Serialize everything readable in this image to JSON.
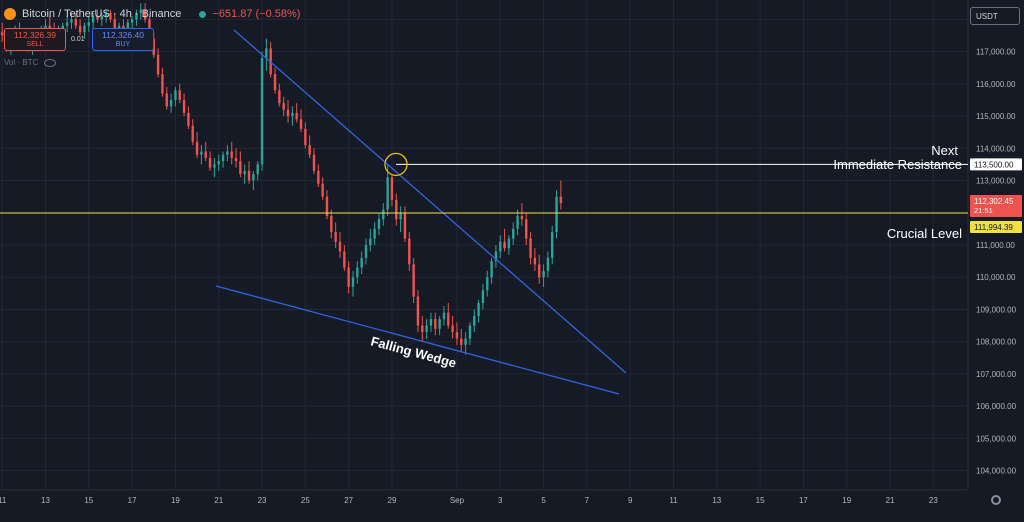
{
  "header": {
    "title": "Bitcoin / TetherUS · 4h · Binance",
    "change": "−651.87 (−0.58%)"
  },
  "trade": {
    "sell_price": "112,326.39",
    "sell_label": "SELL",
    "spread": "0.01",
    "buy_price": "112,326.40",
    "buy_label": "BUY"
  },
  "volume_label": "Vol · BTC",
  "currency": "USDT",
  "chart_data": {
    "type": "candlestick",
    "ylim": [
      103400,
      118600
    ],
    "yticks": [
      104000,
      105000,
      106000,
      107000,
      108000,
      109000,
      110000,
      111000,
      112000,
      113000,
      114000,
      115000,
      116000,
      117000,
      118000
    ],
    "ytick_labels": [
      "104,000.00",
      "105,000.00",
      "106,000.00",
      "107,000.00",
      "108,000.00",
      "109,000.00",
      "110,000.00",
      "111,000.00",
      "112,000.00",
      "113,000.00",
      "114,000.00",
      "115,000.00",
      "116,000.00",
      "117,000.00",
      "118,000.00"
    ],
    "xticks": [
      {
        "label": "11",
        "t": 0
      },
      {
        "label": "13",
        "t": 2
      },
      {
        "label": "15",
        "t": 4
      },
      {
        "label": "17",
        "t": 6
      },
      {
        "label": "19",
        "t": 8
      },
      {
        "label": "21",
        "t": 10
      },
      {
        "label": "23",
        "t": 12
      },
      {
        "label": "25",
        "t": 14
      },
      {
        "label": "27",
        "t": 16
      },
      {
        "label": "29",
        "t": 18
      },
      {
        "label": "Sep",
        "t": 21
      },
      {
        "label": "3",
        "t": 23
      },
      {
        "label": "5",
        "t": 25
      },
      {
        "label": "7",
        "t": 27
      },
      {
        "label": "9",
        "t": 29
      },
      {
        "label": "11",
        "t": 31
      },
      {
        "label": "13",
        "t": 33
      },
      {
        "label": "15",
        "t": 35
      },
      {
        "label": "17",
        "t": 37
      },
      {
        "label": "19",
        "t": 39
      },
      {
        "label": "21",
        "t": 41
      },
      {
        "label": "23",
        "t": 43
      }
    ],
    "xlim": [
      -0.1,
      44.6
    ],
    "candles": [
      [
        0.0,
        117600,
        117900,
        117300,
        117500
      ],
      [
        0.2,
        117500,
        117700,
        117000,
        117200
      ],
      [
        0.4,
        117200,
        117500,
        116900,
        117300
      ],
      [
        0.6,
        117300,
        117800,
        117100,
        117600
      ],
      [
        0.8,
        117600,
        117900,
        117400,
        117500
      ],
      [
        1.0,
        117500,
        117700,
        117200,
        117400
      ],
      [
        1.2,
        117400,
        117600,
        117000,
        117100
      ],
      [
        1.4,
        117100,
        117400,
        116900,
        117300
      ],
      [
        1.6,
        117300,
        117600,
        117100,
        117500
      ],
      [
        1.8,
        117500,
        117800,
        117300,
        117700
      ],
      [
        2.0,
        117700,
        118000,
        117500,
        117800
      ],
      [
        2.2,
        117800,
        118100,
        117600,
        117700
      ],
      [
        2.4,
        117700,
        117900,
        117400,
        117500
      ],
      [
        2.6,
        117500,
        117800,
        117300,
        117600
      ],
      [
        2.8,
        117600,
        117900,
        117400,
        117800
      ],
      [
        3.0,
        117800,
        118100,
        117600,
        117900
      ],
      [
        3.2,
        117900,
        118200,
        117700,
        118000
      ],
      [
        3.4,
        118000,
        118200,
        117700,
        117800
      ],
      [
        3.6,
        117800,
        118000,
        117500,
        117600
      ],
      [
        3.8,
        117600,
        117900,
        117400,
        117800
      ],
      [
        4.0,
        117800,
        118100,
        117600,
        117900
      ],
      [
        4.2,
        117900,
        118200,
        117700,
        118100
      ],
      [
        4.4,
        118100,
        118300,
        117900,
        118000
      ],
      [
        4.6,
        118000,
        118200,
        117800,
        118100
      ],
      [
        4.8,
        118100,
        118300,
        117900,
        118200
      ],
      [
        5.0,
        118200,
        118300,
        117900,
        118000
      ],
      [
        5.2,
        118000,
        118200,
        117500,
        117600
      ],
      [
        5.4,
        117600,
        117900,
        117400,
        117800
      ],
      [
        5.6,
        117800,
        118000,
        117500,
        117700
      ],
      [
        5.8,
        117700,
        118000,
        117500,
        117900
      ],
      [
        6.0,
        117900,
        118100,
        117700,
        118000
      ],
      [
        6.2,
        118000,
        118300,
        117800,
        118200
      ],
      [
        6.4,
        118200,
        118500,
        118000,
        118300
      ],
      [
        6.6,
        118300,
        118500,
        117900,
        118000
      ],
      [
        6.8,
        118000,
        118100,
        117300,
        117400
      ],
      [
        7.0,
        117400,
        117600,
        116800,
        116900
      ],
      [
        7.2,
        116900,
        117100,
        116200,
        116300
      ],
      [
        7.4,
        116300,
        116500,
        115600,
        115700
      ],
      [
        7.6,
        115700,
        115900,
        115200,
        115300
      ],
      [
        7.8,
        115300,
        115700,
        115100,
        115500
      ],
      [
        8.0,
        115500,
        115900,
        115300,
        115800
      ],
      [
        8.2,
        115800,
        116000,
        115400,
        115500
      ],
      [
        8.4,
        115500,
        115700,
        115000,
        115100
      ],
      [
        8.6,
        115100,
        115300,
        114600,
        114700
      ],
      [
        8.8,
        114700,
        114900,
        114100,
        114200
      ],
      [
        9.0,
        114200,
        114500,
        113700,
        113800
      ],
      [
        9.2,
        113800,
        114100,
        113500,
        113900
      ],
      [
        9.4,
        113900,
        114200,
        113600,
        113700
      ],
      [
        9.6,
        113700,
        113900,
        113300,
        113400
      ],
      [
        9.8,
        113400,
        113700,
        113100,
        113500
      ],
      [
        10.0,
        113500,
        113800,
        113300,
        113600
      ],
      [
        10.2,
        113600,
        113900,
        113400,
        113800
      ],
      [
        10.4,
        113800,
        114100,
        113600,
        113900
      ],
      [
        10.6,
        113900,
        114200,
        113500,
        113700
      ],
      [
        10.8,
        113700,
        114000,
        113400,
        113600
      ],
      [
        11.0,
        113600,
        113900,
        113100,
        113200
      ],
      [
        11.2,
        113200,
        113500,
        112900,
        113300
      ],
      [
        11.4,
        113300,
        113600,
        112900,
        113000
      ],
      [
        11.6,
        113000,
        113300,
        112700,
        113200
      ],
      [
        11.8,
        113200,
        113600,
        113000,
        113500
      ],
      [
        12.0,
        113500,
        117000,
        113300,
        116800
      ],
      [
        12.2,
        116800,
        117400,
        116400,
        117100
      ],
      [
        12.4,
        117100,
        117300,
        116200,
        116300
      ],
      [
        12.6,
        116300,
        116500,
        115700,
        115800
      ],
      [
        12.8,
        115800,
        116000,
        115300,
        115400
      ],
      [
        13.0,
        115400,
        115600,
        115000,
        115200
      ],
      [
        13.2,
        115200,
        115500,
        114800,
        115000
      ],
      [
        13.4,
        115000,
        115300,
        114700,
        115100
      ],
      [
        13.6,
        115100,
        115400,
        114800,
        114900
      ],
      [
        13.8,
        114900,
        115200,
        114500,
        114600
      ],
      [
        14.0,
        114600,
        114800,
        114000,
        114100
      ],
      [
        14.2,
        114100,
        114400,
        113700,
        113800
      ],
      [
        14.4,
        113800,
        114000,
        113200,
        113300
      ],
      [
        14.6,
        113300,
        113500,
        112800,
        112900
      ],
      [
        14.8,
        112900,
        113100,
        112400,
        112500
      ],
      [
        15.0,
        112500,
        112700,
        111800,
        111900
      ],
      [
        15.2,
        111900,
        112100,
        111200,
        111400
      ],
      [
        15.4,
        111400,
        111700,
        110900,
        111100
      ],
      [
        15.6,
        111100,
        111400,
        110600,
        110800
      ],
      [
        15.8,
        110800,
        111000,
        110200,
        110300
      ],
      [
        16.0,
        110300,
        110500,
        109500,
        109700
      ],
      [
        16.2,
        109700,
        110200,
        109400,
        110000
      ],
      [
        16.4,
        110000,
        110500,
        109800,
        110300
      ],
      [
        16.6,
        110300,
        110800,
        110100,
        110600
      ],
      [
        16.8,
        110600,
        111200,
        110400,
        111000
      ],
      [
        17.0,
        111000,
        111500,
        110800,
        111200
      ],
      [
        17.2,
        111200,
        111700,
        111000,
        111500
      ],
      [
        17.4,
        111500,
        112000,
        111300,
        111800
      ],
      [
        17.6,
        111800,
        112300,
        111600,
        112100
      ],
      [
        17.8,
        112100,
        113500,
        111900,
        113100
      ],
      [
        18.0,
        113100,
        113200,
        112200,
        112400
      ],
      [
        18.2,
        112400,
        112600,
        111600,
        111800
      ],
      [
        18.4,
        111800,
        112200,
        111400,
        112000
      ],
      [
        18.6,
        112000,
        112200,
        111100,
        111200
      ],
      [
        18.8,
        111200,
        111400,
        110200,
        110400
      ],
      [
        19.0,
        110400,
        110600,
        109200,
        109400
      ],
      [
        19.2,
        109400,
        109600,
        108300,
        108500
      ],
      [
        19.4,
        108500,
        108800,
        108000,
        108300
      ],
      [
        19.6,
        108300,
        108700,
        108100,
        108500
      ],
      [
        19.8,
        108500,
        108900,
        108300,
        108700
      ],
      [
        20.0,
        108700,
        108900,
        108200,
        108400
      ],
      [
        20.2,
        108400,
        108800,
        108200,
        108700
      ],
      [
        20.4,
        108700,
        109100,
        108500,
        108900
      ],
      [
        20.6,
        108900,
        109200,
        108400,
        108500
      ],
      [
        20.8,
        108500,
        108800,
        108100,
        108300
      ],
      [
        21.0,
        108300,
        108600,
        107900,
        108100
      ],
      [
        21.2,
        108100,
        108400,
        107700,
        107900
      ],
      [
        21.4,
        107900,
        108300,
        107600,
        108100
      ],
      [
        21.6,
        108100,
        108600,
        107900,
        108500
      ],
      [
        21.8,
        108500,
        109000,
        108300,
        108800
      ],
      [
        22.0,
        108800,
        109300,
        108600,
        109200
      ],
      [
        22.2,
        109200,
        109800,
        109000,
        109600
      ],
      [
        22.4,
        109600,
        110200,
        109400,
        110000
      ],
      [
        22.6,
        110000,
        110600,
        109800,
        110500
      ],
      [
        22.8,
        110500,
        111000,
        110300,
        110800
      ],
      [
        23.0,
        110800,
        111300,
        110600,
        111100
      ],
      [
        23.2,
        111100,
        111500,
        110800,
        110900
      ],
      [
        23.4,
        110900,
        111300,
        110700,
        111200
      ],
      [
        23.6,
        111200,
        111700,
        111000,
        111500
      ],
      [
        23.8,
        111500,
        112100,
        111300,
        111900
      ],
      [
        24.0,
        111900,
        112300,
        111600,
        111800
      ],
      [
        24.2,
        111800,
        112000,
        111000,
        111200
      ],
      [
        24.4,
        111200,
        111400,
        110400,
        110600
      ],
      [
        24.6,
        110600,
        110900,
        110200,
        110400
      ],
      [
        24.8,
        110400,
        110700,
        109800,
        110000
      ],
      [
        25.0,
        110000,
        110400,
        109700,
        110200
      ],
      [
        25.2,
        110200,
        110800,
        110000,
        110600
      ],
      [
        25.4,
        110600,
        111600,
        110400,
        111400
      ],
      [
        25.6,
        111400,
        112700,
        111200,
        112500
      ],
      [
        25.8,
        112500,
        113000,
        112100,
        112300
      ]
    ],
    "lines": {
      "upper_wedge": [
        [
          4.0,
          117050
        ],
        [
          13.4,
          117000
        ],
        [
          27.3,
          115600
        ]
      ],
      "lower_wedge": [
        [
          4.0,
          106500
        ],
        [
          8.2,
          109700
        ],
        [
          27.3,
          106200
        ]
      ],
      "resistance": {
        "value": 113500,
        "label": "113,500.00",
        "annotation_line1": "Next",
        "annotation_line2": "Immediate Resistance"
      },
      "crucial": {
        "value": 111994.39,
        "label": "111,994.39",
        "annotation": "Crucial Level"
      },
      "current": {
        "value": 112302.45,
        "label": "112,302.45",
        "countdown": "21:51"
      }
    },
    "wedge_label": "Falling Wedge"
  }
}
